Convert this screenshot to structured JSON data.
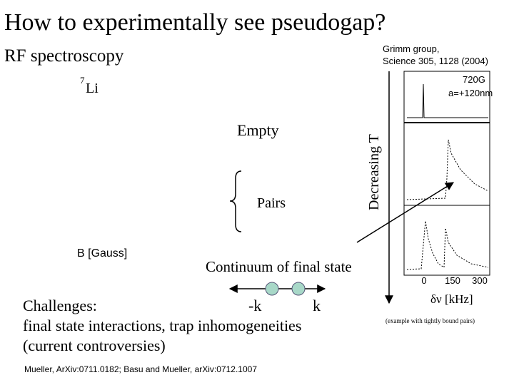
{
  "slide": {
    "title": "How to experimentally see pseudogap?",
    "subtitle": "RF spectroscopy",
    "reference": [
      "Grimm group,",
      "Science 305, 1128 (2004)"
    ],
    "isotope": {
      "mass": "7",
      "element": "Li"
    },
    "levels": {
      "empty": "Empty",
      "pairs": "Pairs"
    },
    "field_label": "B [Gauss]",
    "temperature_label": "Decreasing T",
    "continuum_label": "Continuum of final state",
    "momenta": {
      "minus": "-k",
      "plus": "k"
    },
    "challenges": [
      "Challenges:",
      "final state interactions, trap inhomogeneities",
      "(current controversies)"
    ],
    "citation": "Mueller, ArXiv:0711.0182; Basu and Mueller, arXiv:0712.1007",
    "spectrum": {
      "field": "720G",
      "scattering_length": "a=+120nm",
      "xticks": [
        "0",
        "150",
        "300"
      ],
      "x_label": "δν [kHz]",
      "note": "(example with tightly bound pairs)"
    }
  }
}
